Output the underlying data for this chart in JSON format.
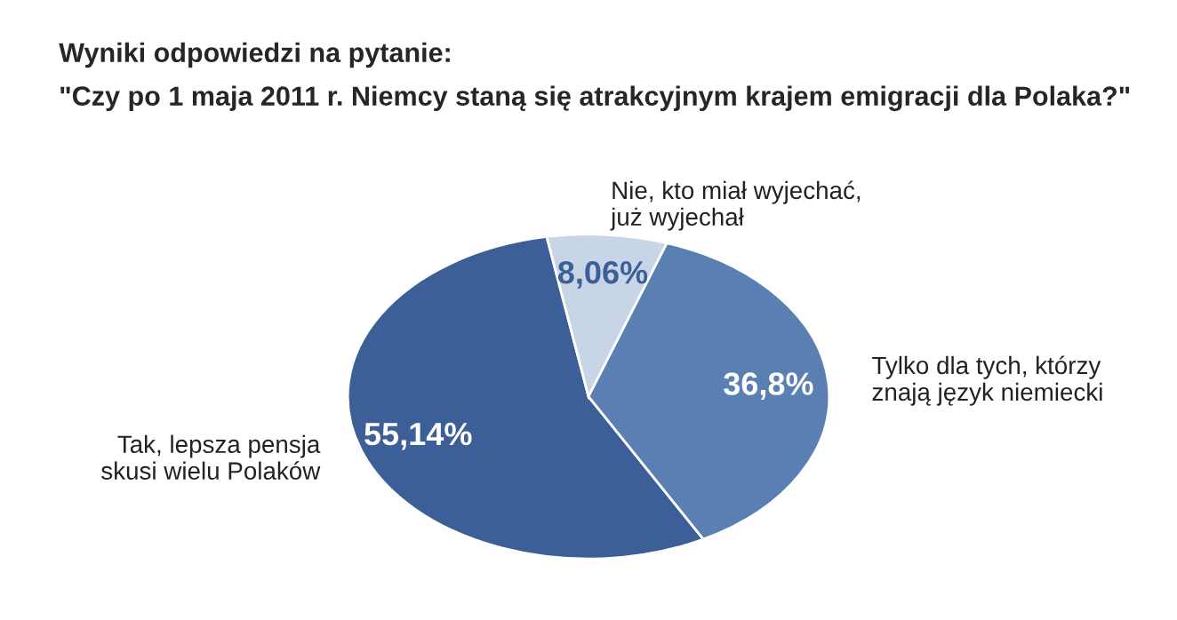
{
  "chart_data": {
    "type": "pie",
    "title": "Wyniki odpowiedzi na pytanie:",
    "subtitle": "\"Czy po 1 maja 2011 r. Niemcy staną się atrakcyjnym krajem emigracji dla Polaka?\"",
    "categories": [
      "Tak, lepsza pensja\nskusi wielu Polaków",
      "Nie, kto miał wyjechać,\njuż wyjechał",
      "Tylko dla tych, którzy\nznają język niemiecki"
    ],
    "values": [
      55.14,
      8.06,
      36.8
    ],
    "value_labels": [
      "55,14%",
      "8,06%",
      "36,8%"
    ],
    "colors": [
      "#3d5f97",
      "#c8d5e6",
      "#5a7fb2"
    ],
    "legend": false
  }
}
